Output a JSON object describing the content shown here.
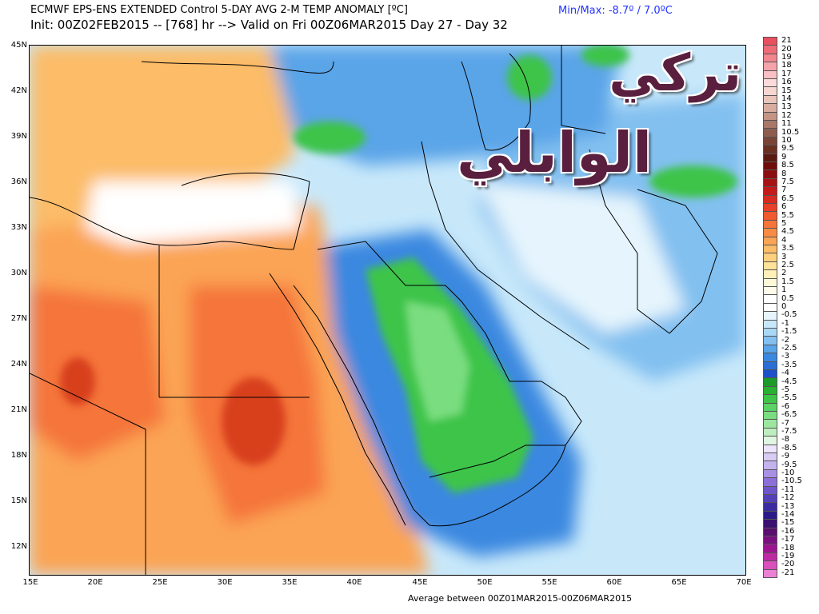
{
  "header": {
    "title": "ECMWF EPS-ENS EXTENDED Control 5-DAY AVG 2-M TEMP ANOMALY [ºC]",
    "subtitle": "Init: 00Z02FEB2015 -- [768] hr --> Valid on Fri 00Z06MAR2015  Day 27 - Day 32",
    "minmax": "Min/Max:  -8.7º /  7.0ºC"
  },
  "footer": {
    "average_text": "Average between 00Z01MAR2015-00Z06MAR2015"
  },
  "axes": {
    "lat_labels": [
      "45N",
      "42N",
      "39N",
      "36N",
      "33N",
      "30N",
      "27N",
      "24N",
      "21N",
      "18N",
      "15N",
      "12N"
    ],
    "lon_labels": [
      "15E",
      "20E",
      "25E",
      "30E",
      "35E",
      "40E",
      "45E",
      "50E",
      "55E",
      "60E",
      "65E",
      "70E"
    ]
  },
  "colorbar": {
    "labels": [
      "21",
      "20",
      "19",
      "18",
      "17",
      "16",
      "15",
      "14",
      "13",
      "12",
      "11",
      "10.5",
      "10",
      "9.5",
      "9",
      "8.5",
      "8",
      "7.5",
      "7",
      "6.5",
      "6",
      "5.5",
      "5",
      "4.5",
      "4",
      "3.5",
      "3",
      "2.5",
      "2",
      "1.5",
      "1",
      "0.5",
      "0",
      "-0.5",
      "-1",
      "-1.5",
      "-2",
      "-2.5",
      "-3",
      "-3.5",
      "-4",
      "-4.5",
      "-5",
      "-5.5",
      "-6",
      "-6.5",
      "-7",
      "-7.5",
      "-8",
      "-8.5",
      "-9",
      "-9.5",
      "-10",
      "-10.5",
      "-11",
      "-12",
      "-13",
      "-14",
      "-15",
      "-16",
      "-17",
      "-18",
      "-19",
      "-20",
      "-21"
    ],
    "colors": [
      "#e8505f",
      "#ee6b78",
      "#f2868f",
      "#f5a3aa",
      "#f8c0c4",
      "#fadadb",
      "#f5d6d0",
      "#e8c4bb",
      "#d8aca0",
      "#c49485",
      "#a87868",
      "#8f5d50",
      "#7a4538",
      "#6a3022",
      "#5a1a10",
      "#700c0c",
      "#8c0f0f",
      "#a81414",
      "#c41a1a",
      "#d82a20",
      "#e8402a",
      "#f05a30",
      "#f5743a",
      "#f88c45",
      "#fba455",
      "#fcbc68",
      "#fdd07e",
      "#fde398",
      "#fef0b8",
      "#fff8d8",
      "#fffbea",
      "#ffffff",
      "#ffffff",
      "#e6f5fd",
      "#c8e8fa",
      "#a8d8f5",
      "#82c0f0",
      "#5aa4e8",
      "#3a88e0",
      "#2a6ed6",
      "#1e50c8",
      "#1c9a2a",
      "#28b030",
      "#3ec448",
      "#5ad264",
      "#7ade80",
      "#9ce6a0",
      "#beeec0",
      "#e0f6e0",
      "#ebe4fa",
      "#d8ccf5",
      "#c4b2ee",
      "#a890e4",
      "#8c70d8",
      "#7055ca",
      "#5540b8",
      "#3a2ca0",
      "#2a1a88",
      "#3a1070",
      "#5a0e70",
      "#7a1080",
      "#9c1490",
      "#bc2aa4",
      "#d850bc",
      "#ec80d4"
    ],
    "min_color": "#2233ff"
  },
  "map": {
    "units": "ºC",
    "lat_range": [
      10,
      45
    ],
    "lon_range": [
      15,
      70
    ],
    "field_colors": {
      "warm_peak": "#d8401a",
      "warm": "#f5743a",
      "mild_warm": "#fba455",
      "light_warm": "#fde398",
      "neutral": "#ffffff",
      "light_cool": "#c8e8fa",
      "cool": "#82c0f0",
      "cold": "#3a88e0",
      "very_cold": "#2a6ed6",
      "green_core": "#3ec448",
      "green_light": "#7ade80"
    }
  },
  "watermark": {
    "line1": "تركي",
    "line2": "الوابلي"
  }
}
